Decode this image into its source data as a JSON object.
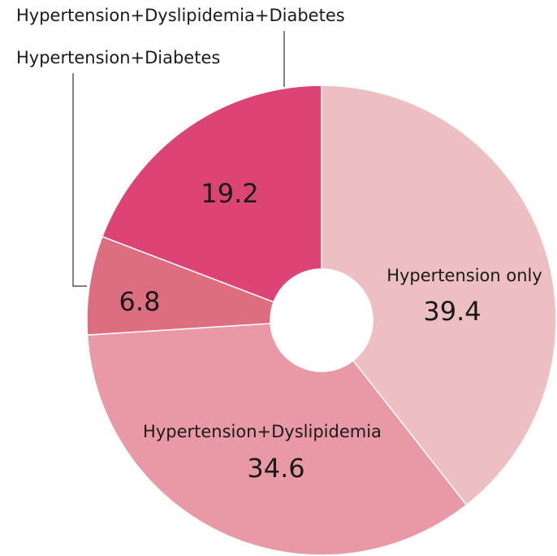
{
  "chart_data": {
    "type": "donut",
    "categories": [
      "Hypertension only",
      "Hypertension+Dyslipidemia",
      "Hypertension+Diabetes",
      "Hypertension+Dyslipidemia+Diabetes"
    ],
    "values": [
      39.4,
      34.6,
      6.8,
      19.2
    ],
    "colors": [
      "#edbfc2",
      "#e899a5",
      "#dc6e80",
      "#dc4476"
    ]
  }
}
